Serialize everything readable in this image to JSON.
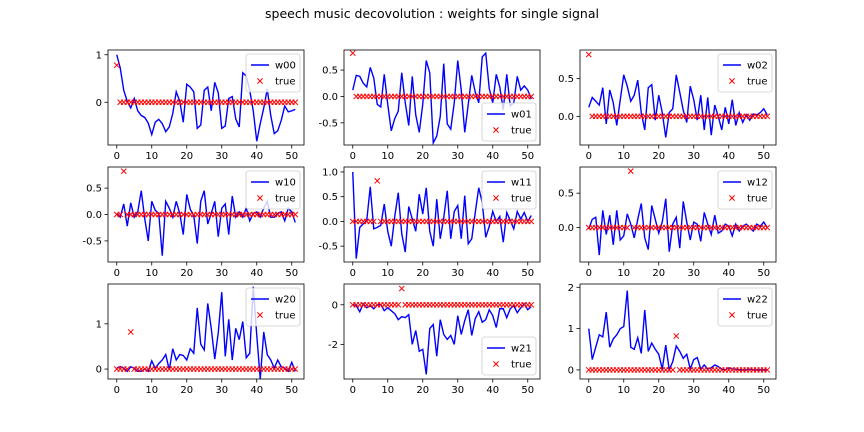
{
  "figure": {
    "title": "speech music decovolution : weights for single signal"
  },
  "chart_data": [
    {
      "type": "line",
      "series_name": "w00",
      "true_name": "true",
      "xlim": [
        -2.5,
        53.5
      ],
      "ylim": [
        -0.9,
        1.1
      ],
      "xticks": [
        0,
        10,
        20,
        30,
        40,
        50
      ],
      "yticks": [
        0,
        1
      ],
      "legend": "upper right",
      "values": [
        1.0,
        0.72,
        0.25,
        0.02,
        -0.12,
        0.08,
        -0.18,
        -0.28,
        -0.32,
        -0.44,
        -0.68,
        -0.42,
        -0.36,
        -0.45,
        -0.62,
        -0.52,
        -0.24,
        0.22,
        0.02,
        -0.42,
        0.38,
        0.32,
        0.22,
        -0.55,
        -0.48,
        0.25,
        0.32,
        -0.18,
        0.42,
        0.2,
        -0.55,
        -0.5,
        0.08,
        0.12,
        -0.35,
        -0.52,
        0.62,
        0.55,
        0.25,
        -0.18,
        -0.82,
        -0.45,
        -0.12,
        0.28,
        -0.28,
        -0.66,
        -0.6,
        -0.38,
        -0.08,
        -0.2,
        -0.18,
        -0.15
      ],
      "true_values": [
        0.78,
        0,
        0,
        0,
        0,
        0,
        0,
        0,
        0,
        0,
        0,
        0,
        0,
        0,
        0,
        0,
        0,
        0,
        0,
        0,
        0,
        0,
        0,
        0,
        0,
        0,
        0,
        0,
        0,
        0,
        0,
        0,
        0,
        0,
        0,
        0,
        0,
        0,
        0,
        0,
        0,
        0,
        0,
        0,
        0,
        0,
        0,
        0,
        0,
        0,
        0,
        0
      ]
    },
    {
      "type": "line",
      "series_name": "w01",
      "true_name": "true",
      "xlim": [
        -2.5,
        53.5
      ],
      "ylim": [
        -0.92,
        0.88
      ],
      "xticks": [
        0,
        10,
        20,
        30,
        40,
        50
      ],
      "yticks": [
        -0.5,
        0.0,
        0.5
      ],
      "legend": "lower right",
      "values": [
        0.12,
        0.4,
        0.38,
        0.25,
        0.18,
        0.55,
        0.35,
        -0.15,
        -0.2,
        0.42,
        -0.15,
        -0.65,
        -0.42,
        -0.28,
        0.45,
        -0.12,
        -0.55,
        0.38,
        -0.35,
        -0.68,
        -0.15,
        0.68,
        0.45,
        -0.88,
        -0.75,
        -0.38,
        0.62,
        -0.52,
        -0.62,
        -0.12,
        0.68,
        0.12,
        -0.68,
        -0.15,
        0.4,
        0.08,
        -0.12,
        0.75,
        0.82,
        0.15,
        -0.12,
        0.42,
        0.18,
        -0.25,
        0.42,
        -0.18,
        -0.12,
        0.38,
        0.12,
        0.2,
        0.12,
        -0.05
      ],
      "true_values": [
        0.82,
        0,
        0,
        0,
        0,
        0,
        0,
        0,
        0,
        0,
        0,
        0,
        0,
        0,
        0,
        0,
        0,
        0,
        0,
        0,
        0,
        0,
        0,
        0,
        0,
        0,
        0,
        0,
        0,
        0,
        0,
        0,
        0,
        0,
        0,
        0,
        0,
        0,
        0,
        0,
        0,
        0,
        0,
        0,
        0,
        0,
        0,
        0,
        0,
        0,
        0,
        0
      ]
    },
    {
      "type": "line",
      "series_name": "w02",
      "true_name": "true",
      "xlim": [
        -2.5,
        53.5
      ],
      "ylim": [
        -0.38,
        0.88
      ],
      "xticks": [
        0,
        10,
        20,
        30,
        40,
        50
      ],
      "yticks": [
        0.0,
        0.5
      ],
      "legend": "upper right",
      "values": [
        0.12,
        0.25,
        0.2,
        0.15,
        0.38,
        -0.1,
        0.35,
        0.18,
        -0.12,
        0.22,
        0.55,
        0.4,
        0.2,
        0.28,
        0.48,
        0.05,
        -0.18,
        0.38,
        0.42,
        -0.05,
        0.28,
        0.05,
        -0.28,
        0.05,
        0.1,
        0.55,
        0.32,
        0.08,
        -0.08,
        0.4,
        0.22,
        -0.05,
        0.28,
        -0.18,
        0.25,
        -0.25,
        0.15,
        0.0,
        -0.18,
        0.12,
        -0.1,
        0.22,
        -0.12,
        0.05,
        -0.08,
        0.02,
        -0.05,
        0.03,
        0.02,
        0.05,
        0.1,
        0.02
      ],
      "true_values": [
        0.82,
        0,
        0,
        0,
        0,
        0,
        0,
        0,
        0,
        0,
        0,
        0,
        0,
        0,
        0,
        0,
        0,
        0,
        0,
        0,
        0,
        0,
        0,
        0,
        0,
        0,
        0,
        0,
        0,
        0,
        0,
        0,
        0,
        0,
        0,
        0,
        0,
        0,
        0,
        0,
        0,
        0,
        0,
        0,
        0,
        0,
        0,
        0,
        0,
        0,
        0,
        0
      ]
    },
    {
      "type": "line",
      "series_name": "w10",
      "true_name": "true",
      "xlim": [
        -2.5,
        53.5
      ],
      "ylim": [
        -0.9,
        0.9
      ],
      "xticks": [
        0,
        10,
        20,
        30,
        40,
        50
      ],
      "yticks": [
        -0.5,
        0.0,
        0.5
      ],
      "legend": "upper right",
      "values": [
        0.02,
        -0.05,
        0.2,
        -0.22,
        0.22,
        -0.05,
        0.05,
        0.45,
        -0.08,
        -0.5,
        0.25,
        0.08,
        0.02,
        -0.78,
        0.25,
        0.12,
        -0.05,
        0.25,
        0.02,
        -0.38,
        0.38,
        0.1,
        -0.02,
        -0.55,
        0.25,
        0.45,
        -0.18,
        0.02,
        0.25,
        -0.42,
        0.12,
        0.2,
        -0.38,
        0.35,
        -0.05,
        0.05,
        -0.05,
        0.12,
        -0.12,
        0.02,
        0.05,
        -0.05,
        0.12,
        0.25,
        -0.05,
        -0.05,
        0.02,
        0.05,
        -0.12,
        0.12,
        0.05,
        -0.15
      ],
      "true_values": [
        0.0,
        0.0,
        0.82,
        0,
        0,
        0,
        0,
        0,
        0,
        0,
        0,
        0,
        0,
        0,
        0,
        0,
        0,
        0,
        0,
        0,
        0,
        0,
        0,
        0,
        0,
        0,
        0,
        0,
        0,
        0,
        0,
        0,
        0,
        0,
        0,
        0,
        0,
        0,
        0,
        0,
        0,
        0,
        0,
        0,
        0,
        0,
        0,
        0,
        0,
        0,
        0,
        0
      ]
    },
    {
      "type": "line",
      "series_name": "w11",
      "true_name": "true",
      "xlim": [
        -2.5,
        53.5
      ],
      "ylim": [
        -0.82,
        1.1
      ],
      "xticks": [
        0,
        10,
        20,
        30,
        40,
        50
      ],
      "yticks": [
        -0.5,
        0.0,
        0.5,
        1.0
      ],
      "legend": "upper right",
      "values": [
        1.0,
        -0.75,
        -0.12,
        -0.05,
        0.02,
        0.7,
        -0.15,
        -0.12,
        -0.08,
        0.35,
        -0.2,
        -0.5,
        0.1,
        0.58,
        -0.25,
        -0.62,
        0.3,
        0.05,
        -0.2,
        0.55,
        0.15,
        0.68,
        -0.2,
        -0.5,
        0.45,
        -0.35,
        0.08,
        0.62,
        -0.35,
        0.2,
        0.32,
        -0.35,
        0.52,
        -0.45,
        -0.35,
        0.18,
        0.68,
        0.38,
        -0.32,
        -0.1,
        0.2,
        0.0,
        0.1,
        -0.42,
        0.18,
        0.02,
        -0.15,
        0.2,
        0.05,
        0.18,
        0.0,
        0.12
      ],
      "true_values": [
        0,
        0,
        0,
        0,
        0,
        0,
        0,
        0.82,
        0,
        0,
        0,
        0,
        0,
        0,
        0,
        0,
        0,
        0,
        0,
        0,
        0,
        0,
        0,
        0,
        0,
        0,
        0,
        0,
        0,
        0,
        0,
        0,
        0,
        0,
        0,
        0,
        0,
        0,
        0,
        0,
        0,
        0,
        0,
        0,
        0,
        0,
        0,
        0,
        0,
        0,
        0,
        0
      ]
    },
    {
      "type": "line",
      "series_name": "w12",
      "true_name": "true",
      "xlim": [
        -2.5,
        53.5
      ],
      "ylim": [
        -0.5,
        0.88
      ],
      "xticks": [
        0,
        10,
        20,
        30,
        40,
        50
      ],
      "yticks": [
        0.0,
        0.5
      ],
      "legend": "upper right",
      "values": [
        -0.02,
        0.12,
        0.15,
        -0.4,
        0.25,
        -0.1,
        0.18,
        -0.25,
        0.25,
        -0.18,
        -0.12,
        0.2,
        0.05,
        -0.15,
        0.12,
        0.35,
        -0.15,
        -0.32,
        0.32,
        0.12,
        -0.08,
        0.08,
        0.42,
        -0.35,
        0.05,
        0.15,
        -0.3,
        0.38,
        0.08,
        -0.18,
        0.08,
        0.05,
        -0.2,
        0.22,
        0.05,
        -0.1,
        0.18,
        -0.08,
        -0.05,
        0.05,
        0.02,
        -0.12,
        0.05,
        -0.05,
        0.02,
        0.05,
        0.0,
        -0.05,
        0.05,
        0.02,
        0.08,
        0.0
      ],
      "true_values": [
        0,
        0,
        0,
        0,
        0,
        0,
        0,
        0,
        0,
        0,
        0,
        0,
        0.82,
        0,
        0,
        0,
        0,
        0,
        0,
        0,
        0,
        0,
        0,
        0,
        0,
        0,
        0,
        0,
        0,
        0,
        0,
        0,
        0,
        0,
        0,
        0,
        0,
        0,
        0,
        0,
        0,
        0,
        0,
        0,
        0,
        0,
        0,
        0,
        0,
        0,
        0,
        0
      ]
    },
    {
      "type": "line",
      "series_name": "w20",
      "true_name": "true",
      "xlim": [
        -2.5,
        53.5
      ],
      "ylim": [
        -0.22,
        1.88
      ],
      "xticks": [
        0,
        10,
        20,
        30,
        40,
        50
      ],
      "yticks": [
        0,
        1
      ],
      "legend": "upper right",
      "values": [
        0.02,
        0.05,
        0.02,
        -0.05,
        0.05,
        0.02,
        -0.05,
        -0.05,
        0.0,
        -0.05,
        0.18,
        0.02,
        0.12,
        0.2,
        0.32,
        -0.02,
        0.45,
        0.2,
        0.32,
        0.3,
        0.2,
        0.45,
        0.35,
        1.35,
        0.55,
        0.42,
        1.45,
        0.9,
        0.22,
        0.8,
        1.7,
        0.28,
        1.1,
        0.2,
        0.9,
        0.65,
        1.05,
        0.25,
        0.35,
        1.82,
        0.75,
        -0.22,
        0.82,
        0.32,
        0.2,
        0.02,
        0.2,
        0.05,
        0.02,
        -0.05,
        0.15,
        -0.05
      ],
      "true_values": [
        0,
        0,
        0,
        0,
        0.82,
        0,
        0,
        0,
        0,
        0,
        0,
        0,
        0,
        0,
        0,
        0,
        0,
        0,
        0,
        0,
        0,
        0,
        0,
        0,
        0,
        0,
        0,
        0,
        0,
        0,
        0,
        0,
        0,
        0,
        0,
        0,
        0,
        0,
        0,
        0,
        0,
        0,
        0,
        0,
        0,
        0,
        0,
        0,
        0,
        0,
        0,
        0
      ]
    },
    {
      "type": "line",
      "series_name": "w21",
      "true_name": "true",
      "xlim": [
        -2.5,
        53.5
      ],
      "ylim": [
        -3.75,
        1.05
      ],
      "xticks": [
        0,
        10,
        20,
        30,
        40,
        50
      ],
      "yticks": [
        -2,
        0
      ],
      "legend": "lower right",
      "values": [
        0.02,
        -0.05,
        -0.35,
        0.05,
        -0.15,
        -0.05,
        -0.2,
        0.0,
        0.02,
        -0.3,
        -0.15,
        -0.3,
        -0.45,
        -0.75,
        -0.6,
        -0.65,
        -0.5,
        -2.0,
        -1.3,
        -2.35,
        -2.25,
        -3.52,
        -1.2,
        -1.0,
        -2.6,
        -0.75,
        -1.5,
        -1.75,
        -1.55,
        -2.0,
        -0.55,
        -1.5,
        -0.8,
        -0.25,
        -1.55,
        -0.7,
        -0.35,
        -0.88,
        -0.75,
        -0.25,
        -0.55,
        -1.15,
        -0.2,
        -0.2,
        -0.65,
        -0.2,
        -0.05,
        -0.4,
        -0.15,
        0.05,
        -0.25,
        -0.1
      ],
      "true_values": [
        0,
        0,
        0,
        0,
        0,
        0,
        0,
        0,
        0,
        0,
        0,
        0,
        0,
        0,
        0.82,
        0,
        0,
        0,
        0,
        0,
        0,
        0,
        0,
        0,
        0,
        0,
        0,
        0,
        0,
        0,
        0,
        0,
        0,
        0,
        0,
        0,
        0,
        0,
        0,
        0,
        0,
        0,
        0,
        0,
        0,
        0,
        0,
        0,
        0,
        0,
        0,
        0
      ]
    },
    {
      "type": "line",
      "series_name": "w22",
      "true_name": "true",
      "xlim": [
        -2.5,
        53.5
      ],
      "ylim": [
        -0.22,
        2.08
      ],
      "xticks": [
        0,
        10,
        20,
        30,
        40,
        50
      ],
      "yticks": [
        0,
        1,
        2
      ],
      "legend": "upper right",
      "values": [
        1.0,
        0.25,
        0.55,
        0.85,
        0.8,
        1.4,
        0.55,
        0.75,
        0.85,
        1.0,
        1.05,
        1.92,
        0.55,
        0.5,
        0.78,
        0.4,
        1.45,
        0.45,
        0.65,
        0.5,
        0.38,
        0.02,
        0.6,
        0.0,
        0.2,
        0.58,
        0.45,
        0.28,
        0.38,
        0.02,
        0.25,
        0.3,
        0.02,
        0.12,
        0.02,
        0.05,
        0.12,
        0.08,
        0.02,
        0.0,
        0.05,
        0.02,
        0.02,
        0.0,
        0.0,
        0.0,
        0.02,
        0.0,
        0.0,
        0.0,
        0.0,
        0.0
      ],
      "true_values": [
        0,
        0,
        0,
        0,
        0,
        0,
        0,
        0,
        0,
        0,
        0,
        0,
        0,
        0,
        0,
        0,
        0,
        0,
        0,
        0,
        0,
        0,
        0,
        0,
        0,
        0.82,
        0,
        0,
        0,
        0,
        0,
        0,
        0,
        0,
        0,
        0,
        0,
        0,
        0,
        0,
        0,
        0,
        0,
        0,
        0,
        0,
        0,
        0,
        0,
        0,
        0,
        0
      ]
    }
  ],
  "colors": {
    "series": "#0000ff",
    "true": "#ff0000",
    "axes": "#000000"
  }
}
